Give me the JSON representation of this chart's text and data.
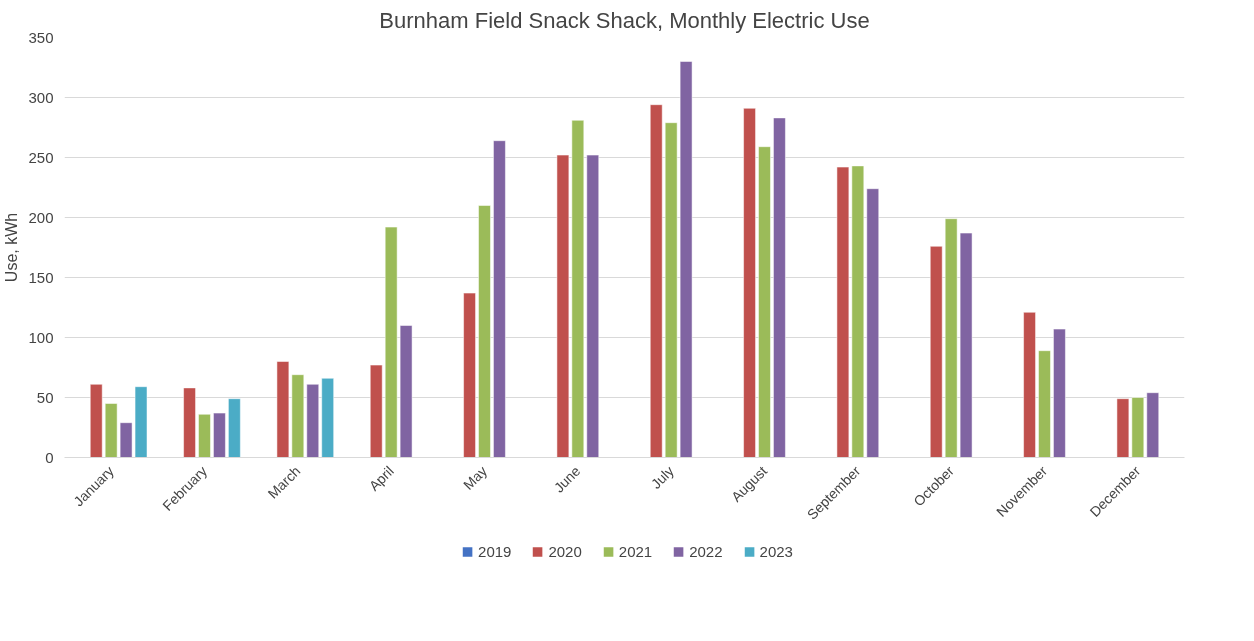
{
  "chart_data": {
    "type": "bar",
    "title": "Burnham Field Snack Shack, Monthly Electric Use",
    "ylabel": "Use, kWh",
    "categories": [
      "January",
      "February",
      "March",
      "April",
      "May",
      "June",
      "July",
      "August",
      "September",
      "October",
      "November",
      "December"
    ],
    "series": [
      {
        "name": "2019",
        "color": "#4472c4",
        "values": [
          null,
          null,
          null,
          null,
          null,
          null,
          null,
          null,
          null,
          null,
          null,
          null
        ]
      },
      {
        "name": "2020",
        "color": "#c0504d",
        "values": [
          61,
          58,
          80,
          77,
          137,
          252,
          294,
          291,
          242,
          176,
          121,
          49
        ]
      },
      {
        "name": "2021",
        "color": "#9bbb59",
        "values": [
          45,
          36,
          69,
          192,
          210,
          281,
          279,
          259,
          243,
          199,
          89,
          50
        ]
      },
      {
        "name": "2022",
        "color": "#8064a2",
        "values": [
          29,
          37,
          61,
          110,
          264,
          252,
          330,
          283,
          224,
          187,
          107,
          54
        ]
      },
      {
        "name": "2023",
        "color": "#4bacc6",
        "values": [
          59,
          49,
          66,
          null,
          null,
          null,
          null,
          null,
          null,
          null,
          null,
          null
        ]
      }
    ],
    "ylim": [
      0,
      350
    ],
    "yticks": [
      0,
      50,
      100,
      150,
      200,
      250,
      300,
      350
    ],
    "grid": "y",
    "legend": "bottom"
  }
}
